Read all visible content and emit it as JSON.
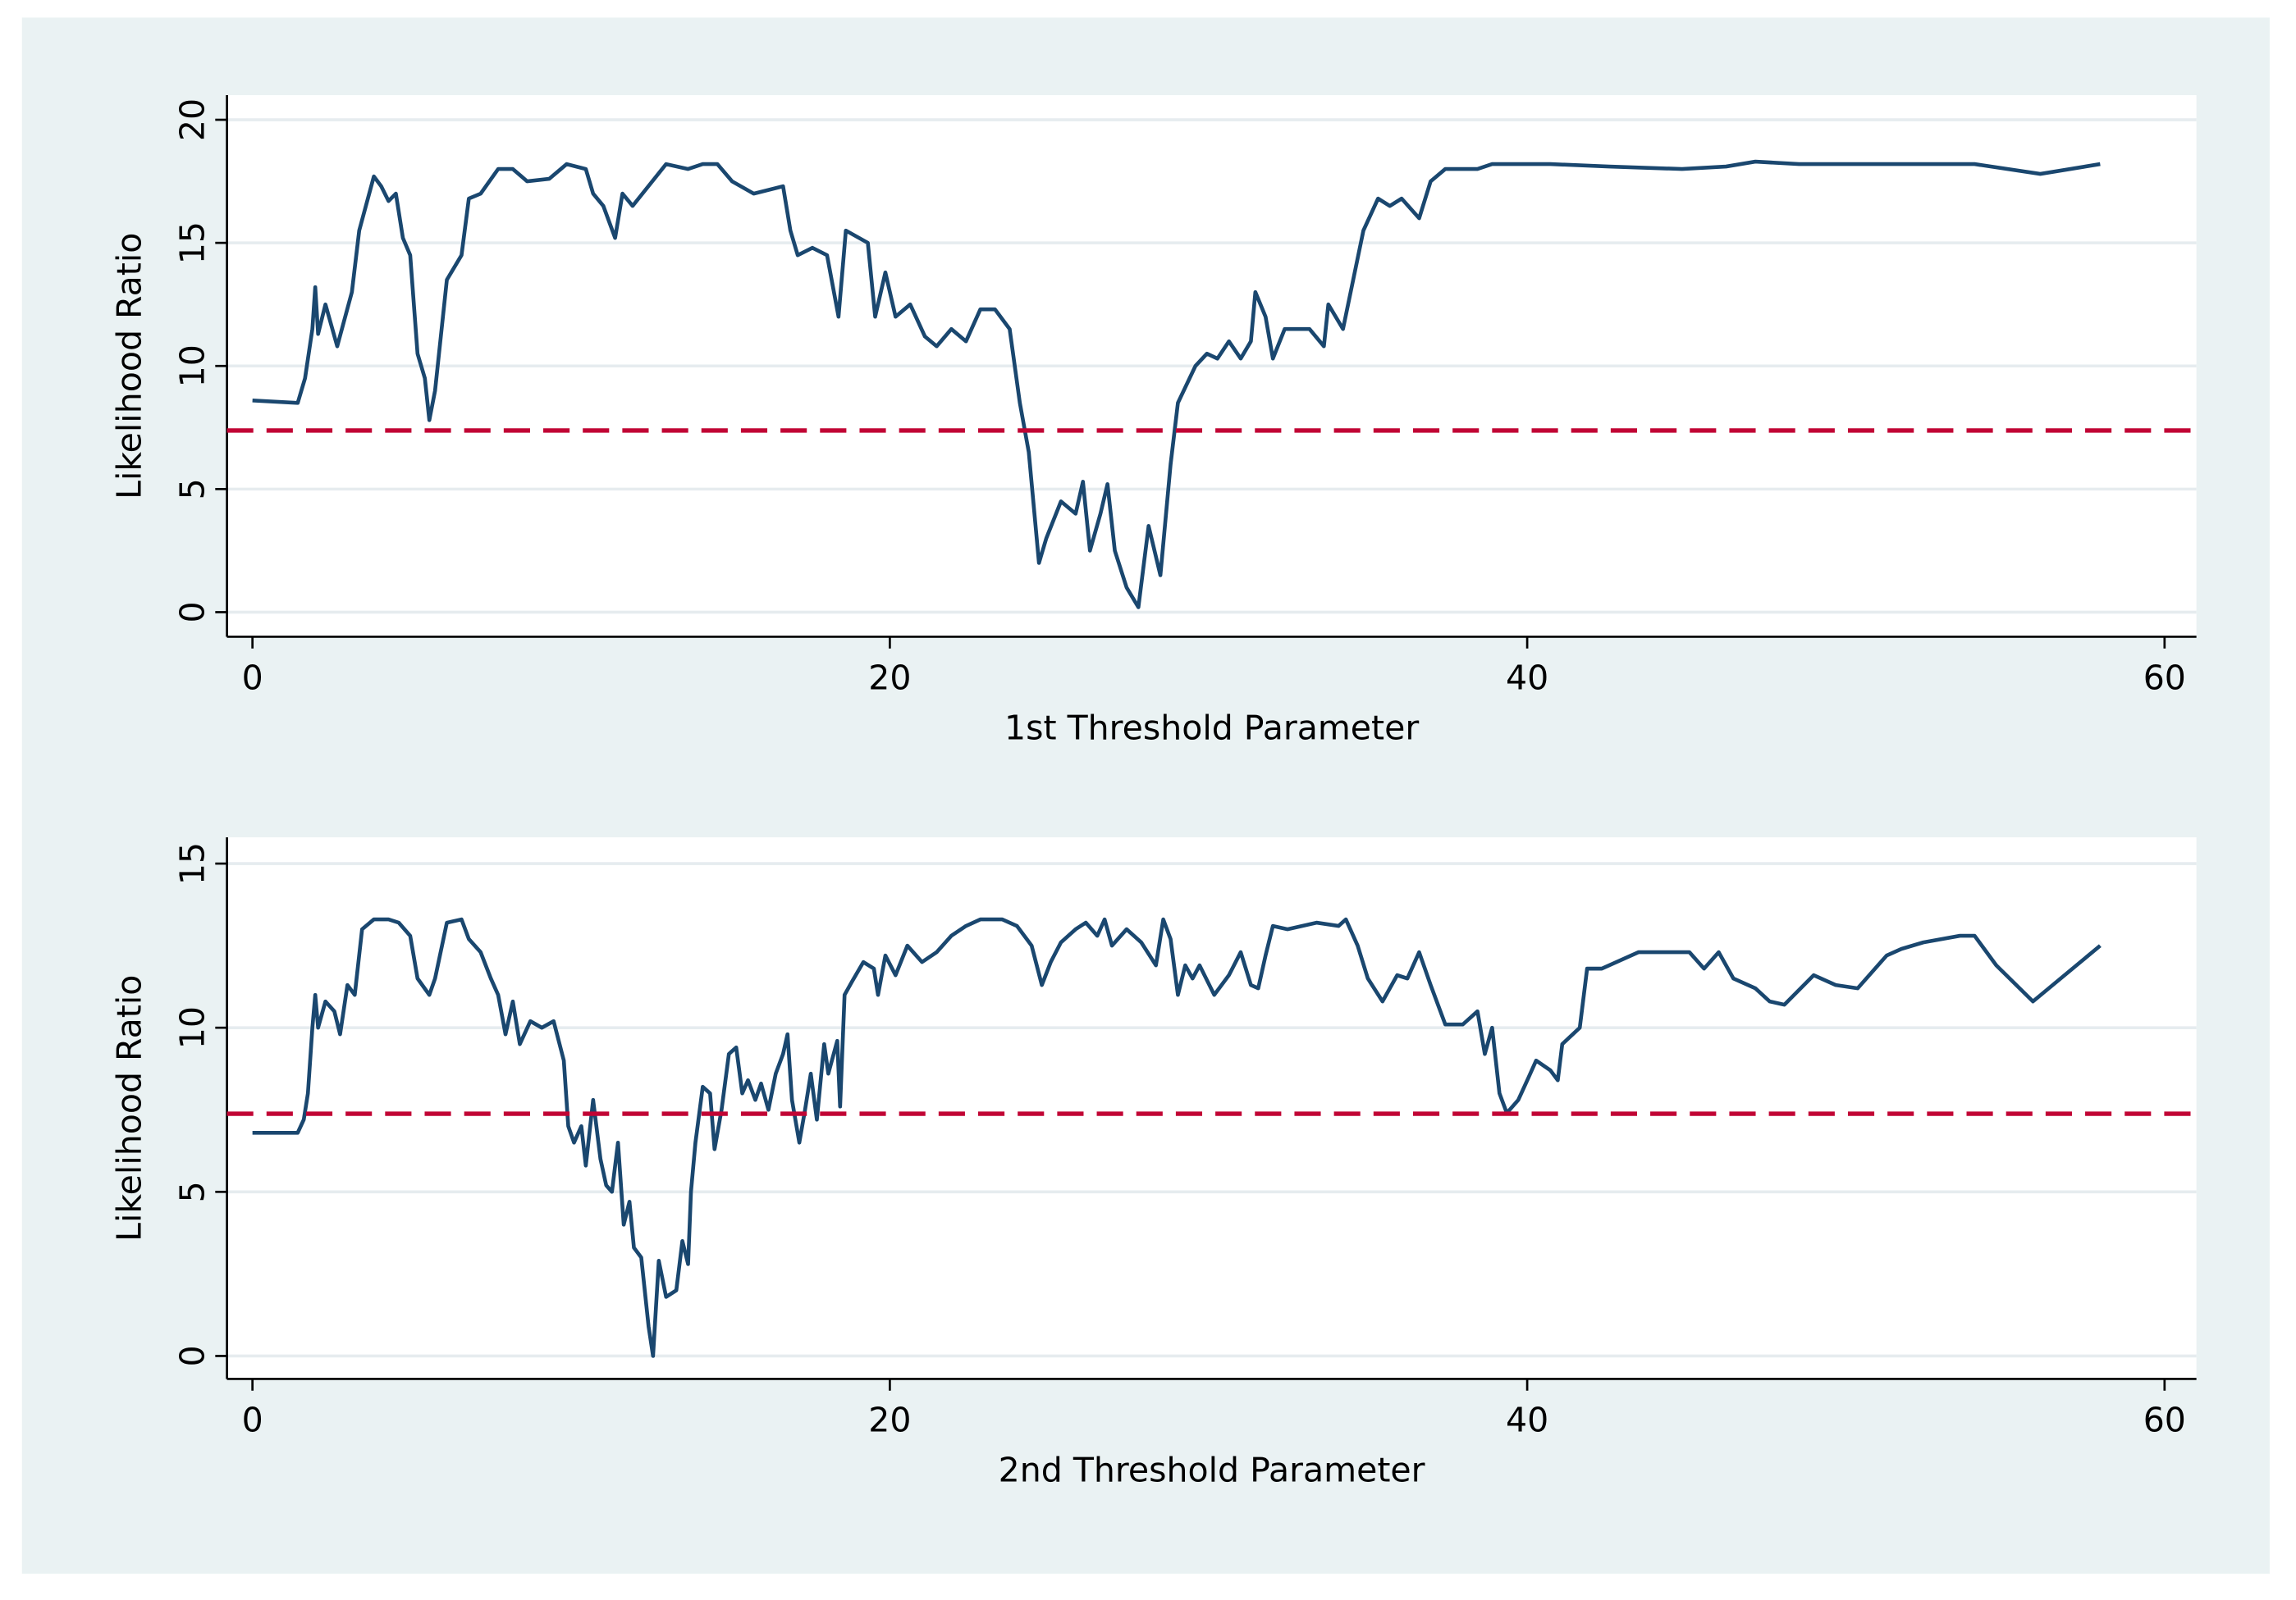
{
  "chart_data": [
    {
      "type": "line",
      "x_label": "1st Threshold Parameter",
      "y_label": "Likelihood Ratio",
      "color": "#1a476f",
      "grid": true,
      "xlim": [
        -0.8,
        61
      ],
      "ylim": [
        -1,
        21
      ],
      "xticks": [
        0,
        20,
        40,
        60
      ],
      "yticks": [
        0,
        5,
        10,
        15,
        20
      ],
      "reference_line": {
        "value": 7.38,
        "color": "#c10534"
      },
      "x": [
        0,
        1.42,
        1.65,
        1.88,
        1.97,
        2.06,
        2.29,
        2.66,
        3.12,
        3.35,
        3.81,
        4.04,
        4.27,
        4.5,
        4.72,
        4.95,
        5.18,
        5.41,
        5.55,
        5.73,
        6.1,
        6.56,
        6.79,
        7.16,
        7.71,
        8.17,
        8.62,
        9.31,
        9.86,
        10.46,
        10.69,
        11.01,
        11.38,
        11.61,
        11.93,
        12.98,
        13.67,
        14.13,
        14.59,
        15.05,
        15.73,
        16.65,
        16.88,
        17.11,
        17.57,
        18.03,
        18.39,
        18.62,
        19.31,
        19.54,
        19.86,
        20.18,
        20.64,
        21.1,
        21.47,
        21.93,
        22.39,
        22.84,
        23.3,
        23.76,
        24.08,
        24.36,
        24.68,
        24.91,
        25.37,
        25.83,
        26.06,
        26.28,
        26.61,
        26.83,
        27.06,
        27.43,
        27.8,
        28.12,
        28.49,
        28.81,
        29.04,
        29.59,
        29.95,
        30.28,
        30.64,
        31.01,
        31.33,
        31.47,
        31.79,
        32.02,
        32.39,
        33.17,
        33.62,
        33.76,
        34.22,
        34.54,
        34.86,
        35.32,
        35.69,
        36.06,
        36.61,
        36.97,
        37.43,
        38.44,
        38.9,
        40.73,
        42.57,
        44.86,
        46.24,
        47.16,
        48.53,
        50.83,
        54.04,
        56.1,
        57.98
      ],
      "values": [
        8.6,
        8.5,
        9.5,
        11.5,
        13.2,
        11.3,
        12.5,
        10.8,
        13,
        15.5,
        17.7,
        17.3,
        16.7,
        17,
        15.2,
        14.5,
        10.5,
        9.5,
        7.8,
        9,
        13.5,
        14.5,
        16.8,
        17,
        18,
        18,
        17.5,
        17.6,
        18.2,
        18,
        17,
        16.5,
        15.2,
        17,
        16.5,
        18.2,
        18,
        18.2,
        18.2,
        17.5,
        17,
        17.3,
        15.5,
        14.5,
        14.8,
        14.5,
        12,
        15.5,
        15,
        12,
        13.8,
        12,
        12.5,
        11.2,
        10.8,
        11.5,
        11,
        12.3,
        12.3,
        11.5,
        8.5,
        6.5,
        2,
        3,
        4.5,
        4,
        5.3,
        2.5,
        4,
        5.2,
        2.5,
        1,
        0.2,
        3.5,
        1.5,
        6,
        8.5,
        10,
        10.5,
        10.3,
        11,
        10.3,
        11,
        13,
        12,
        10.3,
        11.5,
        11.5,
        10.8,
        12.5,
        11.5,
        13.5,
        15.5,
        16.8,
        16.5,
        16.8,
        16,
        17.5,
        18,
        18,
        18.2,
        18.2,
        18.1,
        18,
        18.1,
        18.3,
        18.2,
        18.2,
        18.2,
        17.8,
        18.2
      ]
    },
    {
      "type": "line",
      "x_label": "2nd Threshold Parameter",
      "y_label": "Likelihood Ratio",
      "color": "#1a476f",
      "grid": true,
      "xlim": [
        -0.8,
        61
      ],
      "ylim": [
        -0.7,
        15.8
      ],
      "xticks": [
        0,
        20,
        40,
        60
      ],
      "yticks": [
        0,
        5,
        10,
        15
      ],
      "reference_line": {
        "value": 7.38,
        "color": "#c10534"
      },
      "x": [
        0,
        1.42,
        1.61,
        1.74,
        1.88,
        1.97,
        2.06,
        2.29,
        2.57,
        2.75,
        2.98,
        3.21,
        3.44,
        3.81,
        4.27,
        4.59,
        4.95,
        5.18,
        5.55,
        5.73,
        6.1,
        6.56,
        6.79,
        7.16,
        7.48,
        7.71,
        7.94,
        8.17,
        8.39,
        8.72,
        9.08,
        9.45,
        9.77,
        9.91,
        10.09,
        10.32,
        10.46,
        10.69,
        10.92,
        11.1,
        11.28,
        11.47,
        11.65,
        11.83,
        11.97,
        12.2,
        12.43,
        12.57,
        12.75,
        12.98,
        13.3,
        13.49,
        13.67,
        13.76,
        13.9,
        14.13,
        14.36,
        14.5,
        14.72,
        14.95,
        15.18,
        15.37,
        15.55,
        15.78,
        15.96,
        16.19,
        16.42,
        16.65,
        16.79,
        16.93,
        17.16,
        17.34,
        17.52,
        17.71,
        17.94,
        18.07,
        18.35,
        18.44,
        18.58,
        18.81,
        19.17,
        19.5,
        19.63,
        19.86,
        20.18,
        20.55,
        21.01,
        21.47,
        21.93,
        22.39,
        22.84,
        23.53,
        23.99,
        24.45,
        24.77,
        25.05,
        25.37,
        25.83,
        26.15,
        26.51,
        26.74,
        26.97,
        27.43,
        27.89,
        28.35,
        28.58,
        28.81,
        29.04,
        29.27,
        29.5,
        29.72,
        30.18,
        30.64,
        31.01,
        31.33,
        31.56,
        31.79,
        32.02,
        32.48,
        33.39,
        34.08,
        34.31,
        34.68,
        35,
        35.46,
        35.92,
        36.24,
        36.61,
        36.97,
        37.43,
        37.98,
        38.44,
        38.67,
        38.9,
        39.13,
        39.36,
        39.72,
        40.05,
        40.28,
        40.73,
        40.96,
        41.1,
        41.65,
        41.88,
        42.34,
        42.8,
        43.26,
        43.49,
        45.09,
        45.55,
        46.01,
        46.47,
        47.16,
        47.61,
        48.07,
        48.99,
        49.68,
        50.37,
        51.28,
        51.74,
        52.43,
        53.58,
        54.04,
        54.72,
        55.87,
        57.98
      ],
      "values": [
        6.8,
        6.8,
        7.2,
        8,
        10,
        11,
        10,
        10.8,
        10.5,
        9.8,
        11.3,
        11,
        13,
        13.3,
        13.3,
        13.2,
        12.8,
        11.5,
        11,
        11.5,
        13.2,
        13.3,
        12.7,
        12.3,
        11.5,
        11,
        9.8,
        10.8,
        9.5,
        10.2,
        10,
        10.2,
        9,
        7,
        6.5,
        7,
        5.8,
        7.8,
        6,
        5.2,
        5,
        6.5,
        4,
        4.7,
        3.3,
        3,
        0.9,
        0,
        2.9,
        1.8,
        2,
        3.5,
        2.8,
        5,
        6.5,
        8.2,
        8,
        6.3,
        7.5,
        9.2,
        9.4,
        8,
        8.4,
        7.8,
        8.3,
        7.5,
        8.6,
        9.2,
        9.8,
        7.8,
        6.5,
        7.5,
        8.6,
        7.2,
        9.5,
        8.6,
        9.6,
        7.6,
        11,
        11.4,
        12,
        11.8,
        11,
        12.2,
        11.6,
        12.5,
        12,
        12.3,
        12.8,
        13.1,
        13.3,
        13.3,
        13.1,
        12.5,
        11.3,
        12,
        12.6,
        13,
        13.2,
        12.8,
        13.3,
        12.5,
        13,
        12.6,
        11.9,
        13.3,
        12.7,
        11,
        11.9,
        11.5,
        11.9,
        11,
        11.6,
        12.3,
        11.3,
        11.2,
        12.2,
        13.1,
        13,
        13.2,
        13.1,
        13.3,
        12.5,
        11.5,
        10.8,
        11.6,
        11.5,
        12.3,
        11.3,
        10.1,
        10.1,
        10.5,
        9.2,
        10,
        8,
        7.4,
        7.8,
        8.5,
        9,
        8.7,
        8.4,
        9.5,
        10,
        11.8,
        11.8,
        12,
        12.2,
        12.3,
        12.3,
        11.8,
        12.3,
        11.5,
        11.2,
        10.8,
        10.7,
        11.6,
        11.3,
        11.2,
        12.2,
        12.4,
        12.6,
        12.8,
        12.8,
        11.9,
        10.8,
        12.5
      ]
    }
  ]
}
